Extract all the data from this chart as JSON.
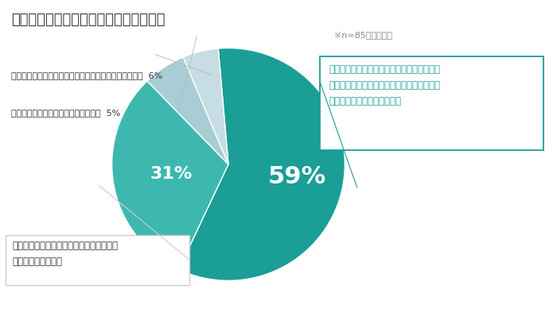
{
  "title": "広告効果測定に関する課題への対応方針",
  "note": "※n=85／単一回答",
  "slices": [
    59,
    31,
    6,
    5
  ],
  "colors": [
    "#1a9e96",
    "#3db8af",
    "#a8cdd4",
    "#c5dde3"
  ],
  "annotation_59": "個人を特定・追跡するという手法から、統計\n的な分析により相関や推計ベースで広告の効\n果を測定する手法に移行する",
  "annotation_31": "限られた取得可能な個人データをベースに\n効果測定を実施する",
  "annotation_6": "現時点で方針は決めていない（打ち手が見えていない）  6%",
  "annotation_5": "特に対策は取らず、従来どおりにする  5%",
  "label_59": "59%",
  "label_31": "31%",
  "bg_color": "#ffffff",
  "title_fontsize": 13,
  "note_fontsize": 8,
  "pct_large_fontsize": 22,
  "pct_medium_fontsize": 16,
  "annotation_fontsize": 8.5,
  "small_label_fontsize": 8,
  "startangle": 90,
  "text_color_dark": "#333333",
  "text_color_teal": "#1a9e96",
  "text_color_gray": "#888888",
  "box59_color": "#1a9e96",
  "box31_color": "#999999"
}
